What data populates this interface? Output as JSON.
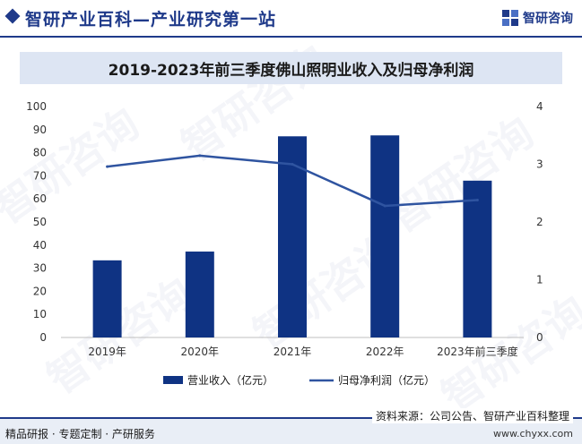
{
  "header": {
    "site_title": "智研产业百科—产业研究第一站",
    "logo_text": "智研咨询"
  },
  "watermark_text": "智研咨询",
  "colors": {
    "brand": "#1f3a8a",
    "bar": "#0f3383",
    "line": "#2f54a0",
    "title_band": "#dde5f3",
    "axis_text": "#333333"
  },
  "chart_data": {
    "type": "bar+line",
    "title": "2019-2023年前三季度佛山照明业收入及归母净利润",
    "categories": [
      "2019年",
      "2020年",
      "2021年",
      "2022年",
      "2023年前三季度"
    ],
    "series": [
      {
        "name": "营业收入（亿元）",
        "type": "bar",
        "axis": "left",
        "values": [
          33.4,
          37.2,
          87.1,
          87.5,
          67.9
        ]
      },
      {
        "name": "归母净利润（亿元）",
        "type": "line",
        "axis": "right",
        "values": [
          2.96,
          3.15,
          3.0,
          2.28,
          2.38
        ]
      }
    ],
    "y_left": {
      "min": 0,
      "max": 100,
      "ticks": [
        0,
        10,
        20,
        30,
        40,
        50,
        60,
        70,
        80,
        90,
        100
      ]
    },
    "y_right": {
      "min": 0,
      "max": 4,
      "ticks": [
        0,
        1,
        2,
        3,
        4
      ]
    },
    "grid": false,
    "legend_position": "bottom-center"
  },
  "footer": {
    "source": "资料来源：公司公告、智研产业百科整理",
    "left_text": "精品研报 · 专题定制 · 产研服务",
    "url": "www.chyxx.com"
  }
}
